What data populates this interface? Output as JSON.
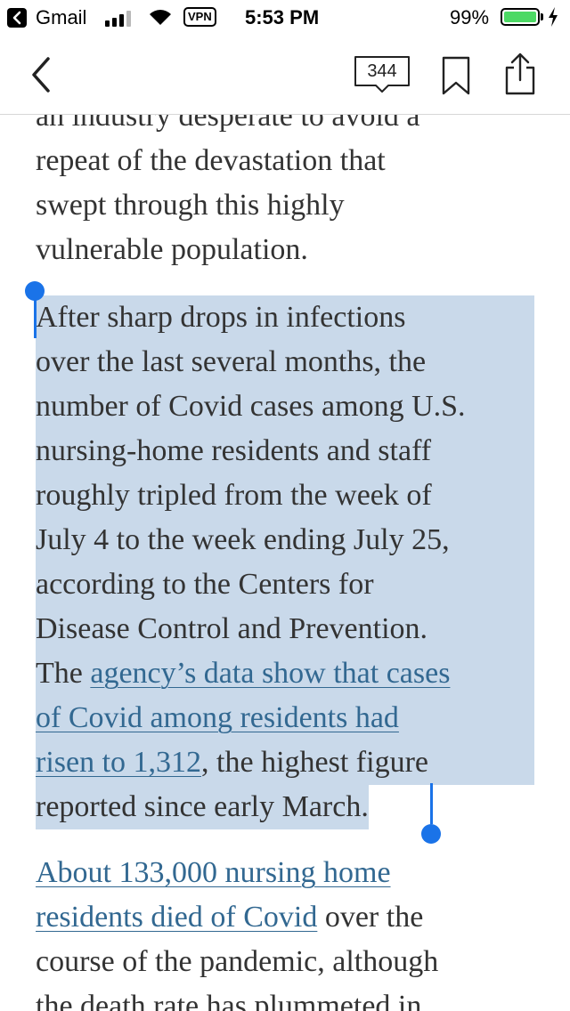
{
  "status_bar": {
    "app_name": "Gmail",
    "vpn_label": "VPN",
    "time": "5:53 PM",
    "battery_percent": "99%",
    "battery_level": 0.99
  },
  "nav": {
    "comment_count": "344",
    "icons": [
      "back-chevron-icon",
      "comment-bubble-icon",
      "bookmark-icon",
      "share-icon"
    ]
  },
  "article": {
    "para_prev": {
      "lines": [
        "an industry desperate to avoid a",
        "repeat of the devastation that",
        "swept through this highly",
        "vulnerable population."
      ]
    },
    "para_selected": {
      "lines": [
        "After sharp drops in infections",
        "over the last several months, the",
        "number of Covid cases among U.S.",
        "nursing-home residents and staff",
        "roughly tripled from the week of",
        "July 4 to the week ending July 25,",
        "according to the Centers for",
        "Disease Control and Prevention."
      ],
      "line9_prefix": "The ",
      "link_line1": "agency’s data show that cases",
      "link_line2": "of Covid among residents had",
      "link_line3": "risen to 1,312",
      "line11_suffix": ", the highest figure",
      "last_line": "reported since early March."
    },
    "para_next": {
      "link_line1": "About 133,000 nursing home",
      "link_line2": "residents died of Covid",
      "line2_suffix": " over the",
      "line3": "course of the pandemic, although",
      "line4": "the death rate has plummeted in"
    }
  },
  "colors": {
    "selection": "#c9d9ea",
    "link": "#326891",
    "handle": "#1a73e8",
    "battery": "#4cd964"
  }
}
